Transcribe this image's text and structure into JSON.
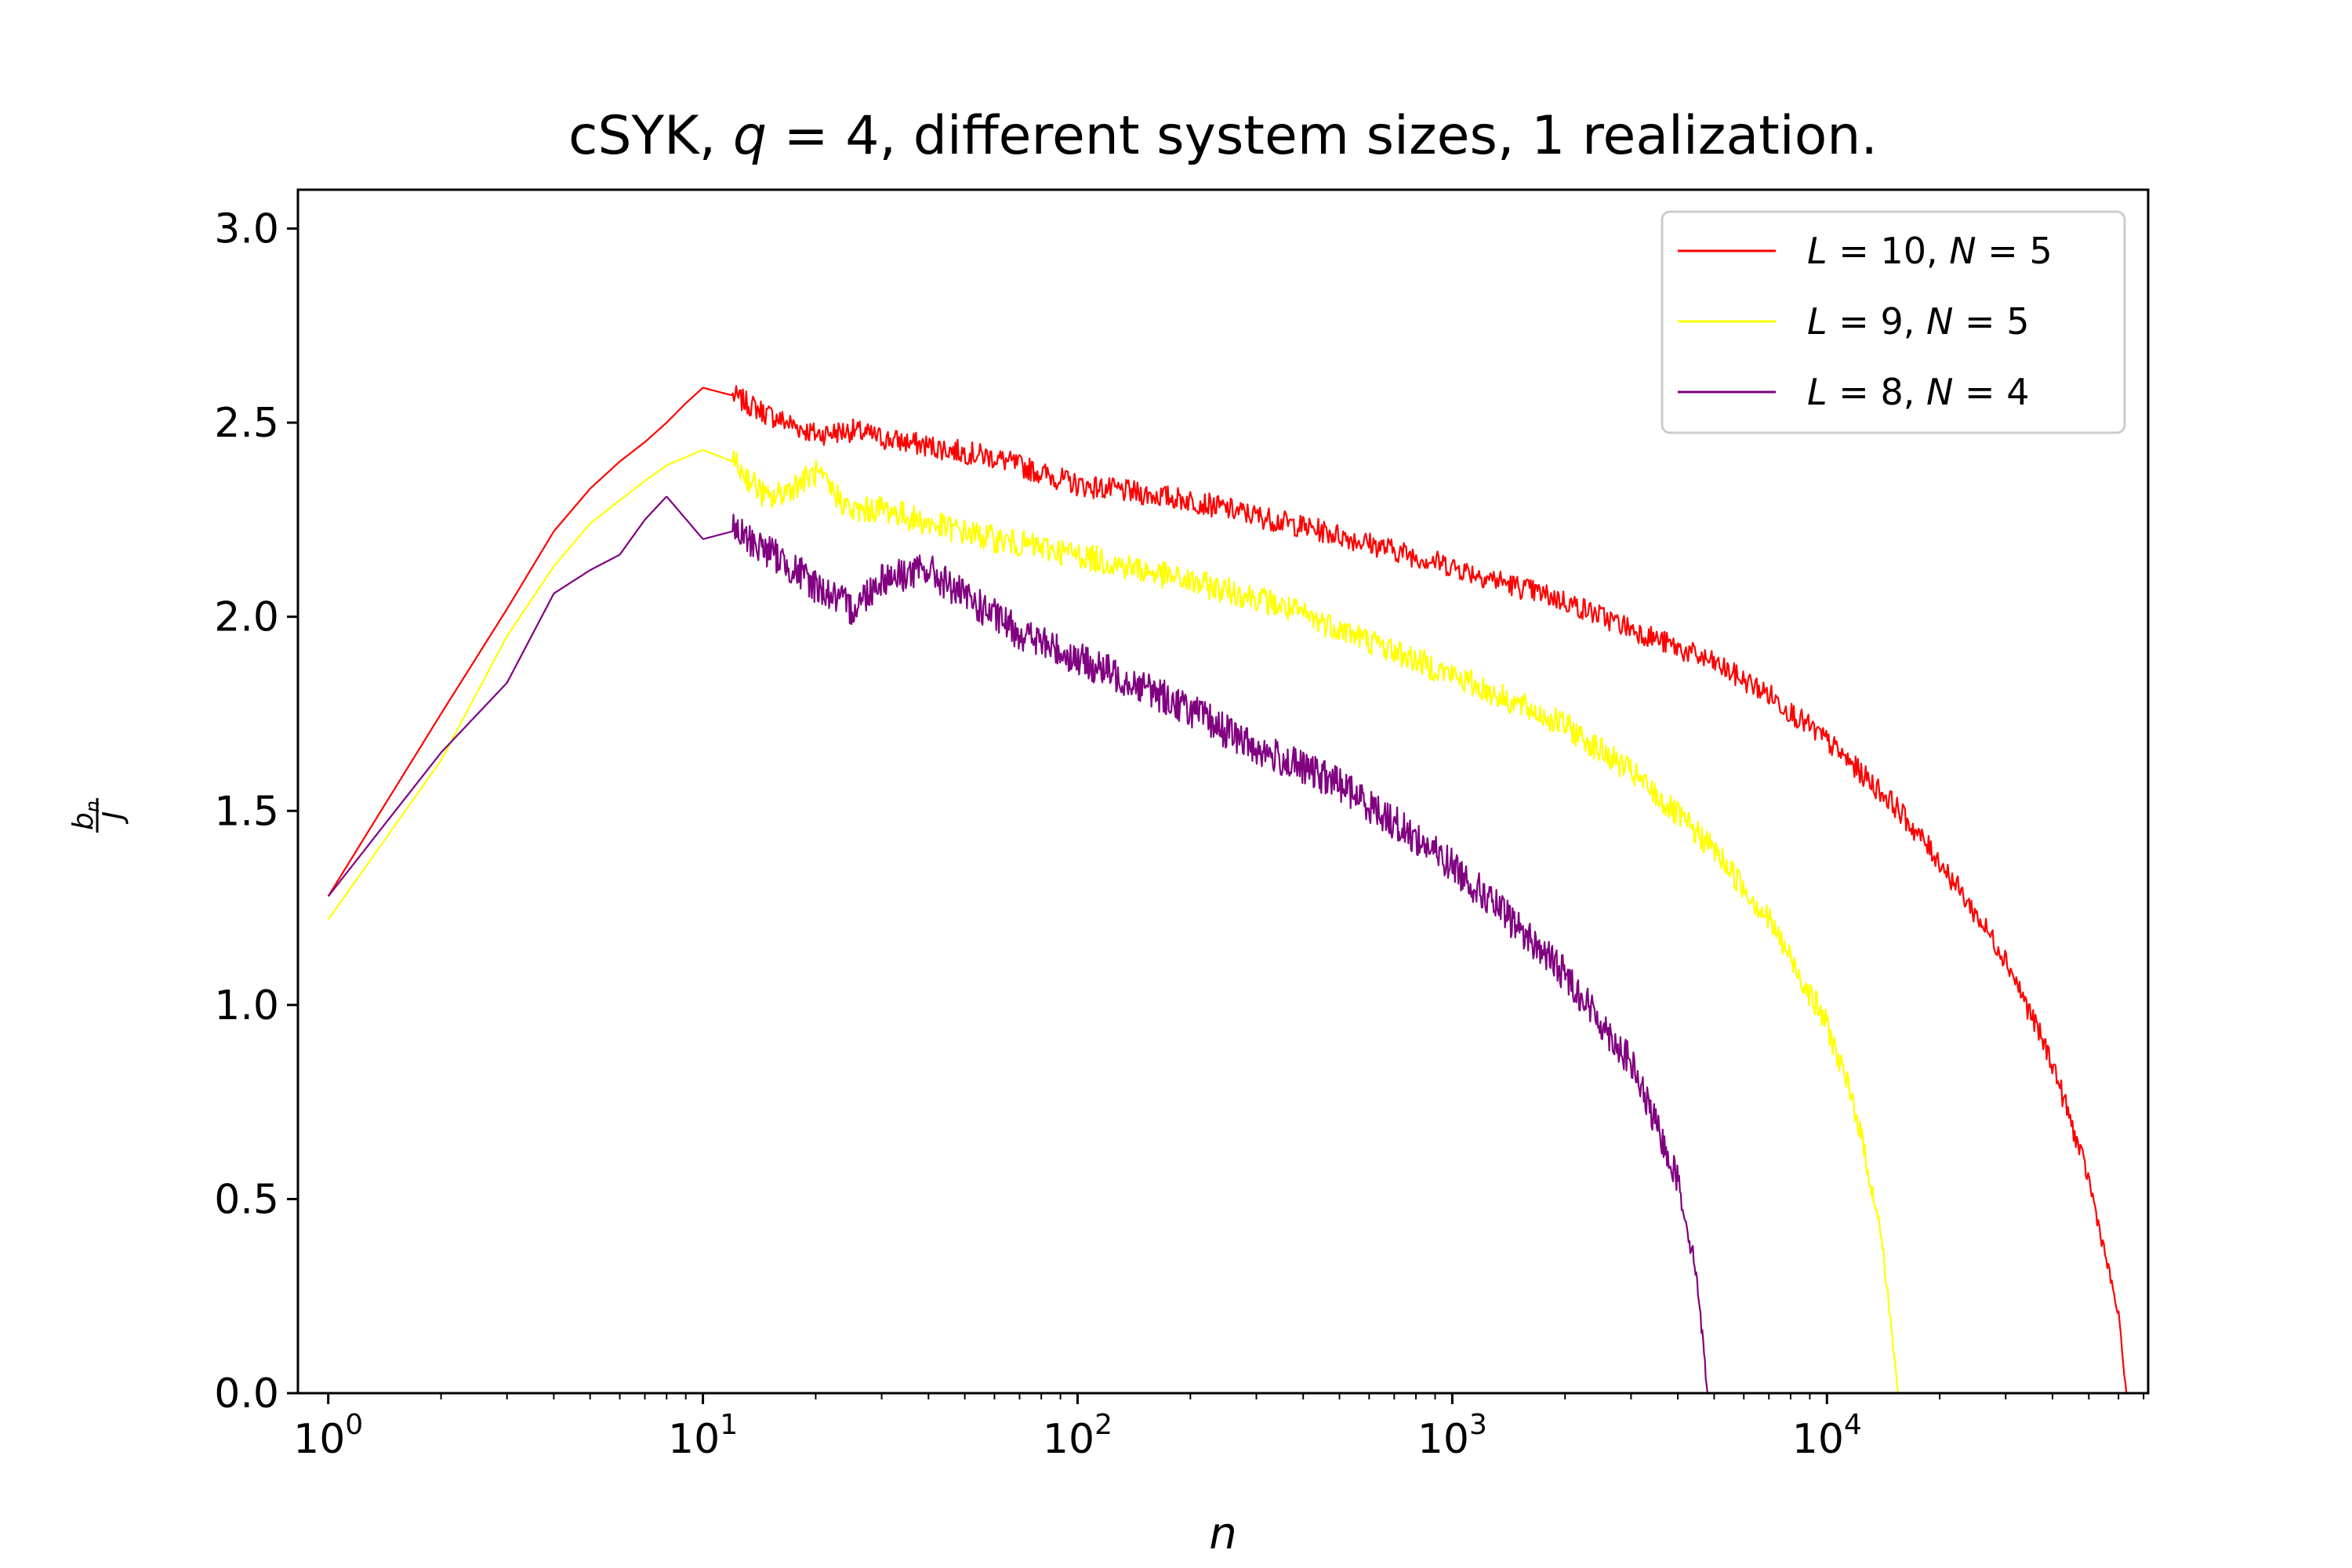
{
  "chart_data": {
    "type": "line",
    "title": "cSYK, q = 4, different system sizes, 1 realization.",
    "title_parts": {
      "prefix": "cSYK, ",
      "var": "q",
      "eq": " = 4, different system sizes, 1 realization."
    },
    "xlabel": "n",
    "ylabel": {
      "numerator": "b",
      "numerator_sub": "n",
      "denominator": "J"
    },
    "xscale": "log",
    "xlim": [
      0.83,
      72000
    ],
    "ylim": [
      0,
      3.1
    ],
    "xticks": [
      {
        "value": 1,
        "base": "10",
        "exp": "0"
      },
      {
        "value": 10,
        "base": "10",
        "exp": "1"
      },
      {
        "value": 100,
        "base": "10",
        "exp": "2"
      },
      {
        "value": 1000,
        "base": "10",
        "exp": "3"
      },
      {
        "value": 10000,
        "base": "10",
        "exp": "4"
      }
    ],
    "yticks": [
      {
        "value": 0.0,
        "label": "0.0"
      },
      {
        "value": 0.5,
        "label": "0.5"
      },
      {
        "value": 1.0,
        "label": "1.0"
      },
      {
        "value": 1.5,
        "label": "1.5"
      },
      {
        "value": 2.0,
        "label": "2.0"
      },
      {
        "value": 2.5,
        "label": "2.5"
      },
      {
        "value": 3.0,
        "label": "3.0"
      }
    ],
    "legend": {
      "position": "top-right"
    },
    "series": [
      {
        "name": "L = 10, N = 5",
        "label": {
          "L": "10",
          "N": "5"
        },
        "color": "#ff0000",
        "noise": 0.03,
        "points": [
          [
            1,
            1.28
          ],
          [
            2,
            1.75
          ],
          [
            3,
            2.02
          ],
          [
            4,
            2.22
          ],
          [
            5,
            2.33
          ],
          [
            6,
            2.4
          ],
          [
            7,
            2.45
          ],
          [
            8,
            2.5
          ],
          [
            9,
            2.55
          ],
          [
            10,
            2.59
          ],
          [
            12,
            2.57
          ],
          [
            15,
            2.52
          ],
          [
            20,
            2.47
          ],
          [
            25,
            2.48
          ],
          [
            30,
            2.46
          ],
          [
            40,
            2.44
          ],
          [
            60,
            2.41
          ],
          [
            100,
            2.34
          ],
          [
            200,
            2.3
          ],
          [
            300,
            2.26
          ],
          [
            500,
            2.21
          ],
          [
            1000,
            2.13
          ],
          [
            2000,
            2.04
          ],
          [
            3000,
            1.97
          ],
          [
            5000,
            1.88
          ],
          [
            7000,
            1.8
          ],
          [
            10000,
            1.68
          ],
          [
            15000,
            1.52
          ],
          [
            20000,
            1.37
          ],
          [
            30000,
            1.12
          ],
          [
            40000,
            0.85
          ],
          [
            50000,
            0.55
          ],
          [
            60000,
            0.2
          ],
          [
            63000,
            0.0
          ]
        ]
      },
      {
        "name": "L = 9, N = 5",
        "label": {
          "L": "9",
          "N": "5"
        },
        "color": "#ffff00",
        "noise": 0.035,
        "points": [
          [
            1,
            1.22
          ],
          [
            2,
            1.63
          ],
          [
            3,
            1.95
          ],
          [
            4,
            2.13
          ],
          [
            5,
            2.24
          ],
          [
            6,
            2.3
          ],
          [
            7,
            2.35
          ],
          [
            8,
            2.39
          ],
          [
            10,
            2.43
          ],
          [
            12,
            2.4
          ],
          [
            15,
            2.3
          ],
          [
            20,
            2.37
          ],
          [
            25,
            2.27
          ],
          [
            30,
            2.28
          ],
          [
            40,
            2.24
          ],
          [
            60,
            2.2
          ],
          [
            100,
            2.16
          ],
          [
            200,
            2.09
          ],
          [
            300,
            2.05
          ],
          [
            500,
            1.97
          ],
          [
            1000,
            1.85
          ],
          [
            2000,
            1.72
          ],
          [
            3000,
            1.6
          ],
          [
            5000,
            1.4
          ],
          [
            7000,
            1.22
          ],
          [
            10000,
            0.95
          ],
          [
            12000,
            0.72
          ],
          [
            14000,
            0.4
          ],
          [
            15500,
            0.0
          ]
        ]
      },
      {
        "name": "L = 8, N = 4",
        "label": {
          "L": "8",
          "N": "4"
        },
        "color": "#800080",
        "noise": 0.045,
        "points": [
          [
            1,
            1.28
          ],
          [
            2,
            1.65
          ],
          [
            3,
            1.83
          ],
          [
            4,
            2.06
          ],
          [
            5,
            2.12
          ],
          [
            6,
            2.16
          ],
          [
            7,
            2.25
          ],
          [
            8,
            2.31
          ],
          [
            10,
            2.2
          ],
          [
            12,
            2.22
          ],
          [
            15,
            2.17
          ],
          [
            20,
            2.08
          ],
          [
            25,
            2.02
          ],
          [
            30,
            2.1
          ],
          [
            40,
            2.12
          ],
          [
            50,
            2.05
          ],
          [
            70,
            1.96
          ],
          [
            100,
            1.89
          ],
          [
            150,
            1.82
          ],
          [
            200,
            1.76
          ],
          [
            300,
            1.66
          ],
          [
            500,
            1.57
          ],
          [
            700,
            1.47
          ],
          [
            1000,
            1.36
          ],
          [
            1500,
            1.2
          ],
          [
            2000,
            1.08
          ],
          [
            3000,
            0.85
          ],
          [
            4000,
            0.55
          ],
          [
            4500,
            0.3
          ],
          [
            4800,
            0.0
          ]
        ]
      }
    ]
  }
}
